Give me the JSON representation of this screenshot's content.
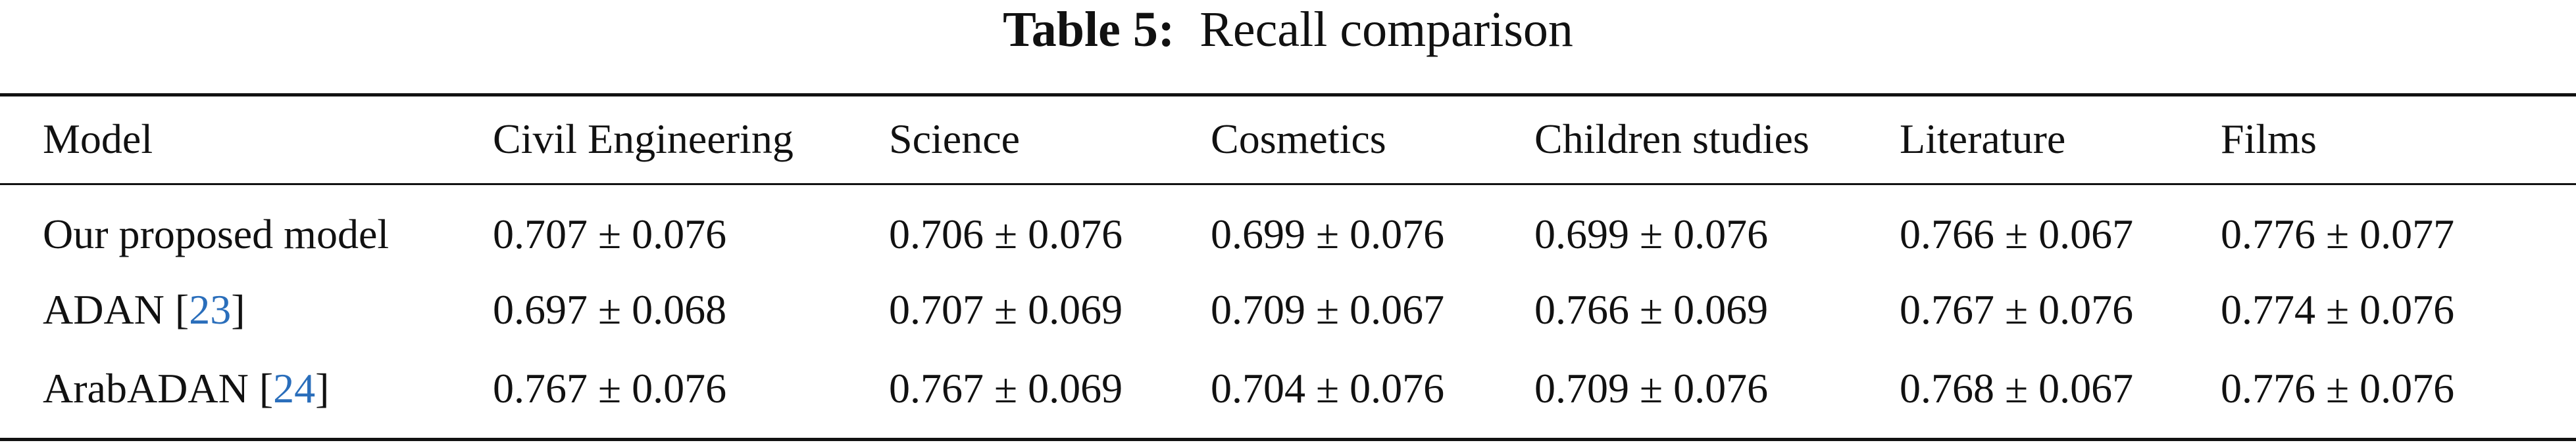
{
  "caption": {
    "label": "Table 5:",
    "text": "Recall comparison"
  },
  "table": {
    "header": [
      "Model",
      "Civil Engineering",
      "Science",
      "Cosmetics",
      "Children studies",
      "Literature",
      "Films"
    ],
    "rows": [
      {
        "model": "Our proposed model",
        "ref": null,
        "values": [
          "0.707 ± 0.076",
          "0.706 ± 0.076",
          "0.699 ± 0.076",
          "0.699 ± 0.076",
          "0.766 ± 0.067",
          "0.776 ± 0.077"
        ]
      },
      {
        "model": "ADAN",
        "ref": "23",
        "values": [
          "0.697 ± 0.068",
          "0.707 ± 0.069",
          "0.709 ± 0.067",
          "0.766 ± 0.069",
          "0.767 ± 0.076",
          "0.774 ± 0.076"
        ]
      },
      {
        "model": "ArabADAN",
        "ref": "24",
        "values": [
          "0.767 ± 0.076",
          "0.767 ± 0.069",
          "0.704 ± 0.076",
          "0.709 ± 0.076",
          "0.768 ± 0.067",
          "0.776 ± 0.076"
        ]
      }
    ]
  }
}
